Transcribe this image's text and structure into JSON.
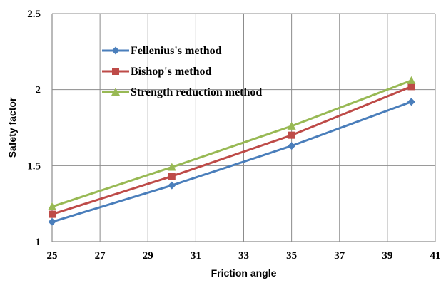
{
  "chart_data": {
    "type": "line",
    "title": "",
    "xlabel": "Friction angle",
    "ylabel": "Safety factor",
    "xlim": [
      25,
      41
    ],
    "ylim": [
      1,
      2.5
    ],
    "x_ticks": [
      25,
      27,
      29,
      31,
      33,
      35,
      37,
      39,
      41
    ],
    "x_tick_labels": [
      "25",
      "27",
      "29",
      "31",
      "33",
      "35",
      "37",
      "39",
      "41"
    ],
    "y_ticks": [
      1,
      1.5,
      2,
      2.5
    ],
    "y_tick_labels": [
      "1",
      "1.5",
      "2",
      "2.5"
    ],
    "grid": true,
    "legend_position": "top-left",
    "x": [
      25,
      30,
      35,
      40
    ],
    "series": [
      {
        "name": "Fellenius's method",
        "values": [
          1.13,
          1.37,
          1.63,
          1.92
        ],
        "color": "#4a7ebb",
        "marker": "diamond"
      },
      {
        "name": "Bishop's method",
        "values": [
          1.18,
          1.43,
          1.7,
          2.02
        ],
        "color": "#be4b48",
        "marker": "square"
      },
      {
        "name": "Strength reduction method",
        "values": [
          1.23,
          1.49,
          1.76,
          2.06
        ],
        "color": "#98b954",
        "marker": "triangle"
      }
    ]
  }
}
